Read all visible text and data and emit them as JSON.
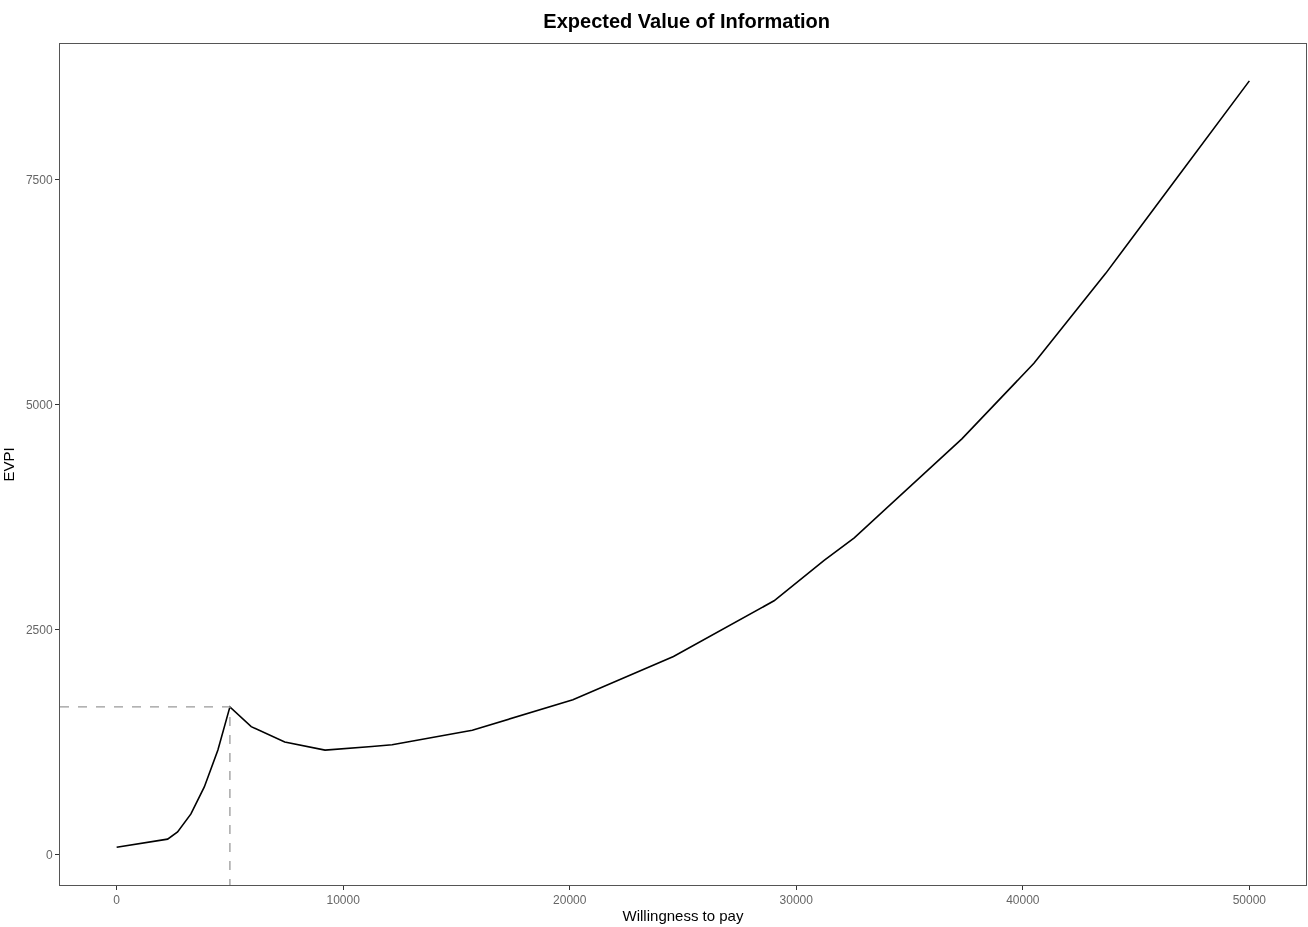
{
  "chart_data": {
    "type": "line",
    "title": "Expected Value of Information",
    "xlabel": "Willingness to pay",
    "ylabel": "EVPI",
    "xlim": [
      -2500,
      52500
    ],
    "ylim": [
      -340,
      9010
    ],
    "xticks": [
      0,
      10000,
      20000,
      30000,
      40000,
      50000
    ],
    "yticks": [
      0,
      2500,
      5000,
      7500
    ],
    "series": [
      {
        "color": "#000000",
        "line_style": "solid",
        "x": [
          0,
          2250,
          2690,
          3280,
          3870,
          4470,
          5000,
          5940,
          7420,
          9200,
          11270,
          12160,
          15700,
          20140,
          24580,
          29020,
          31230,
          32560,
          37310,
          40490,
          43660,
          46800,
          50000
        ],
        "values": [
          80,
          170,
          250,
          450,
          750,
          1160,
          1640,
          1420,
          1250,
          1160,
          1200,
          1220,
          1380,
          1720,
          2200,
          2820,
          3270,
          3520,
          4620,
          5460,
          6460,
          7520,
          8600
        ]
      },
      {
        "color": "#999999",
        "line_style": "dashed",
        "x": [
          -2500,
          5000,
          5000
        ],
        "values": [
          1640,
          1640,
          -340
        ]
      }
    ]
  }
}
